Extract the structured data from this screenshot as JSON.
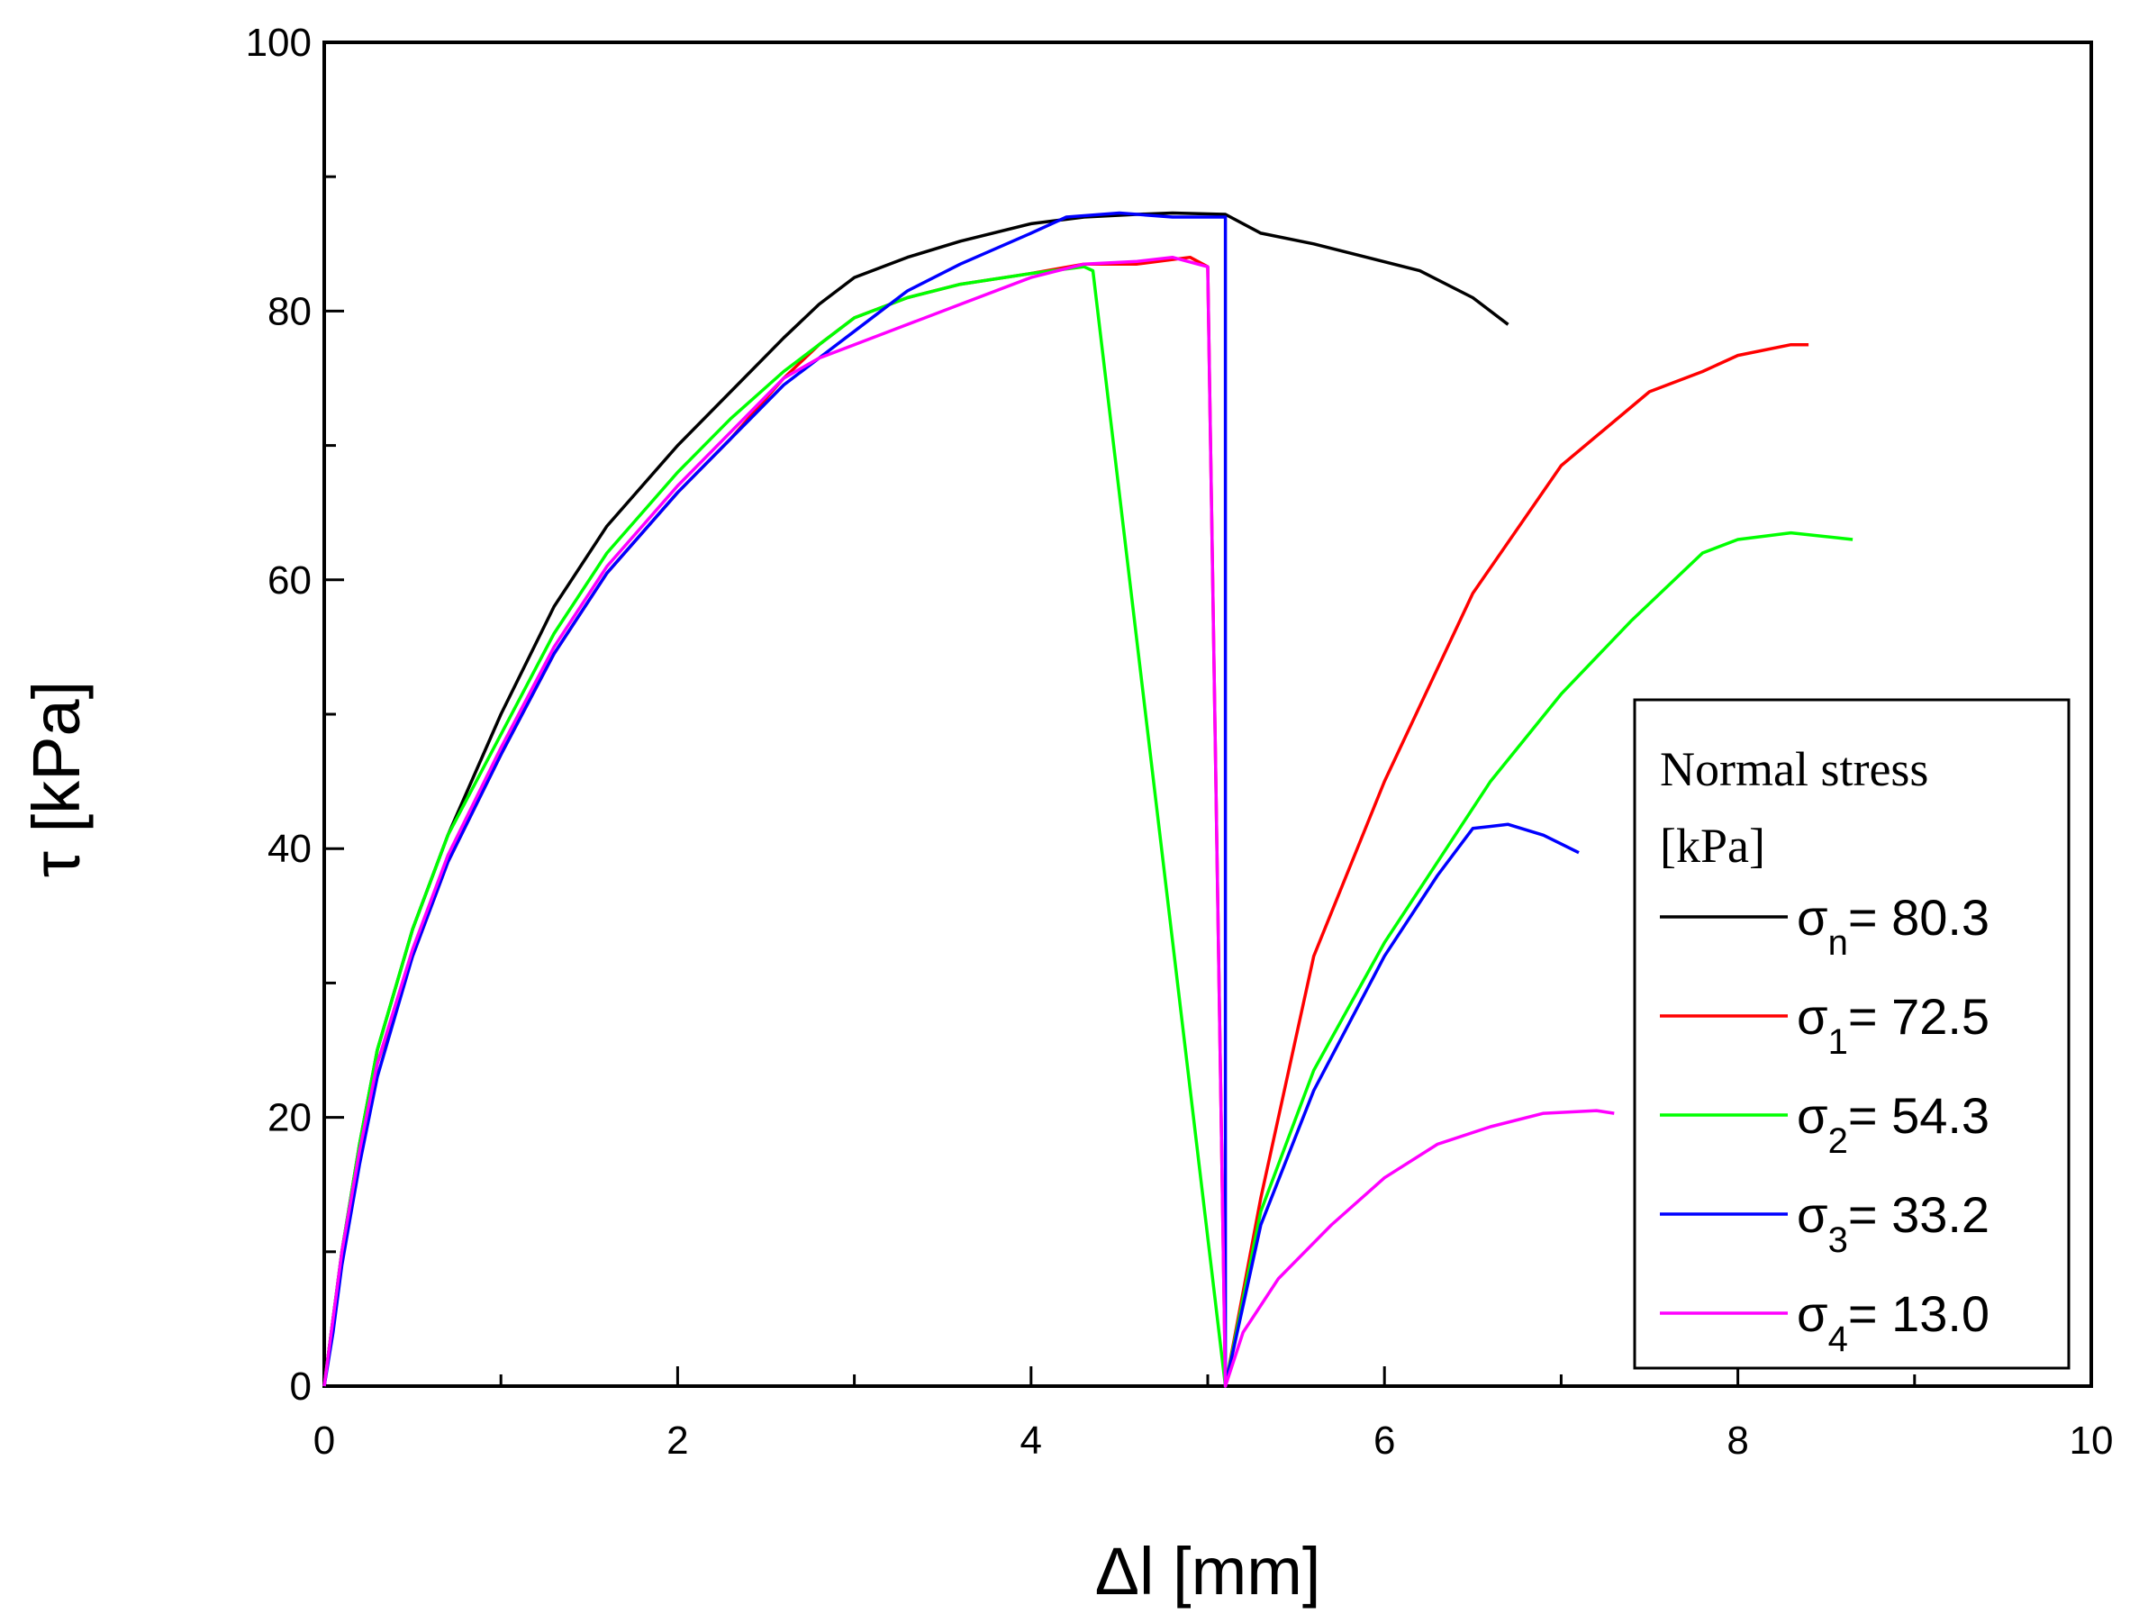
{
  "chart_data": {
    "type": "line",
    "title": "",
    "xlabel": "Δl [mm]",
    "ylabel": "τ [kPa]",
    "xlim": [
      0,
      10
    ],
    "ylim": [
      0,
      100
    ],
    "xticks": [
      "0",
      "2",
      "4",
      "6",
      "8",
      "10"
    ],
    "yticks": [
      "0",
      "20",
      "40",
      "60",
      "80",
      "100"
    ],
    "grid": false,
    "legend": {
      "title_line1": "Normal stress",
      "title_line2": "[kPa]",
      "position": "right"
    },
    "series": [
      {
        "name": "σn = 80.3",
        "symbol": "σ",
        "subscript": "n",
        "value_text": "= 80.3",
        "color": "#000000",
        "x": [
          0,
          0.05,
          0.1,
          0.2,
          0.3,
          0.5,
          0.7,
          1.0,
          1.3,
          1.6,
          2.0,
          2.3,
          2.6,
          2.8,
          3.0,
          3.3,
          3.6,
          4.0,
          4.3,
          4.6,
          4.8,
          5.1,
          5.3,
          5.6,
          5.9,
          6.2,
          6.5,
          6.7
        ],
        "y": [
          0,
          5,
          10,
          18,
          25,
          34,
          41,
          50,
          58,
          64,
          70,
          74,
          78,
          80.5,
          82.5,
          84,
          85.2,
          86.5,
          87,
          87.2,
          87.3,
          87.2,
          85.8,
          85,
          84,
          83,
          81,
          79
        ]
      },
      {
        "name": "σ1 = 72.5",
        "symbol": "σ",
        "subscript": "1",
        "value_text": "= 72.5",
        "color": "#ff0000",
        "x": [
          0,
          0.05,
          0.1,
          0.2,
          0.3,
          0.5,
          0.7,
          1.0,
          1.3,
          1.6,
          2.0,
          2.3,
          2.6,
          2.8,
          3.0,
          3.3,
          3.6,
          4.0,
          4.3,
          4.6,
          4.9,
          5.0,
          5.1,
          5.3,
          5.6,
          6.0,
          6.5,
          7.0,
          7.5,
          7.8,
          8.0,
          8.3,
          8.4
        ],
        "y": [
          0,
          5,
          9.5,
          17,
          24,
          32,
          39,
          47,
          54.5,
          60.5,
          66.5,
          70.5,
          75,
          77.5,
          79.5,
          81,
          82,
          82.8,
          83.5,
          83.5,
          84,
          83.3,
          0,
          14,
          32,
          45,
          59,
          68.5,
          74,
          75.5,
          76.7,
          77.5,
          77.5
        ]
      },
      {
        "name": "σ2 = 54.3",
        "symbol": "σ",
        "subscript": "2",
        "value_text": "= 54.3",
        "color": "#00ff00",
        "x": [
          0,
          0.05,
          0.1,
          0.2,
          0.3,
          0.5,
          0.7,
          1.0,
          1.3,
          1.6,
          2.0,
          2.3,
          2.6,
          2.8,
          3.0,
          3.3,
          3.6,
          4.0,
          4.3,
          4.35,
          5.1,
          5.3,
          5.6,
          6.0,
          6.3,
          6.6,
          7.0,
          7.4,
          7.8,
          8.0,
          8.3,
          8.65
        ],
        "y": [
          0,
          5,
          10,
          18,
          25,
          34,
          41,
          48.5,
          56,
          62,
          68,
          72,
          75.5,
          77.5,
          79.5,
          81,
          82,
          82.8,
          83.3,
          83,
          0,
          13,
          23.5,
          33,
          39,
          45,
          51.5,
          57,
          62,
          63,
          63.5,
          63
        ]
      },
      {
        "name": "σ3 = 33.2",
        "symbol": "σ",
        "subscript": "3",
        "value_text": "= 33.2",
        "color": "#0000ff",
        "x": [
          0,
          0.05,
          0.1,
          0.2,
          0.3,
          0.5,
          0.7,
          1.0,
          1.3,
          1.6,
          2.0,
          2.3,
          2.6,
          2.8,
          3.0,
          3.3,
          3.6,
          4.0,
          4.2,
          4.5,
          4.8,
          5.0,
          5.1,
          5.1,
          5.3,
          5.6,
          6.0,
          6.3,
          6.5,
          6.7,
          6.9,
          7.1
        ],
        "y": [
          0,
          4,
          9,
          16.5,
          23,
          32,
          39,
          47,
          54.5,
          60.5,
          66.5,
          70.5,
          74.5,
          76.5,
          78.5,
          81.5,
          83.5,
          85.8,
          87,
          87.3,
          87,
          87,
          87,
          0,
          12,
          22,
          32,
          38,
          41.5,
          41.8,
          41,
          39.7
        ]
      },
      {
        "name": "σ4 = 13.0",
        "symbol": "σ",
        "subscript": "4",
        "value_text": "= 13.0",
        "color": "#ff00ff",
        "x": [
          0,
          0.05,
          0.1,
          0.2,
          0.3,
          0.5,
          0.7,
          1.0,
          1.3,
          1.6,
          2.0,
          2.3,
          2.6,
          2.8,
          3.0,
          3.3,
          3.6,
          4.0,
          4.3,
          4.6,
          4.8,
          5.0,
          5.1,
          5.2,
          5.4,
          5.7,
          6.0,
          6.3,
          6.6,
          6.9,
          7.2,
          7.3
        ],
        "y": [
          0,
          5,
          10,
          17.5,
          24,
          32.5,
          39.5,
          47.5,
          55,
          61,
          67,
          71,
          75,
          76.5,
          77.5,
          79,
          80.5,
          82.5,
          83.5,
          83.7,
          84,
          83.3,
          0,
          4,
          8,
          12,
          15.5,
          18,
          19.3,
          20.3,
          20.5,
          20.3
        ]
      }
    ]
  }
}
